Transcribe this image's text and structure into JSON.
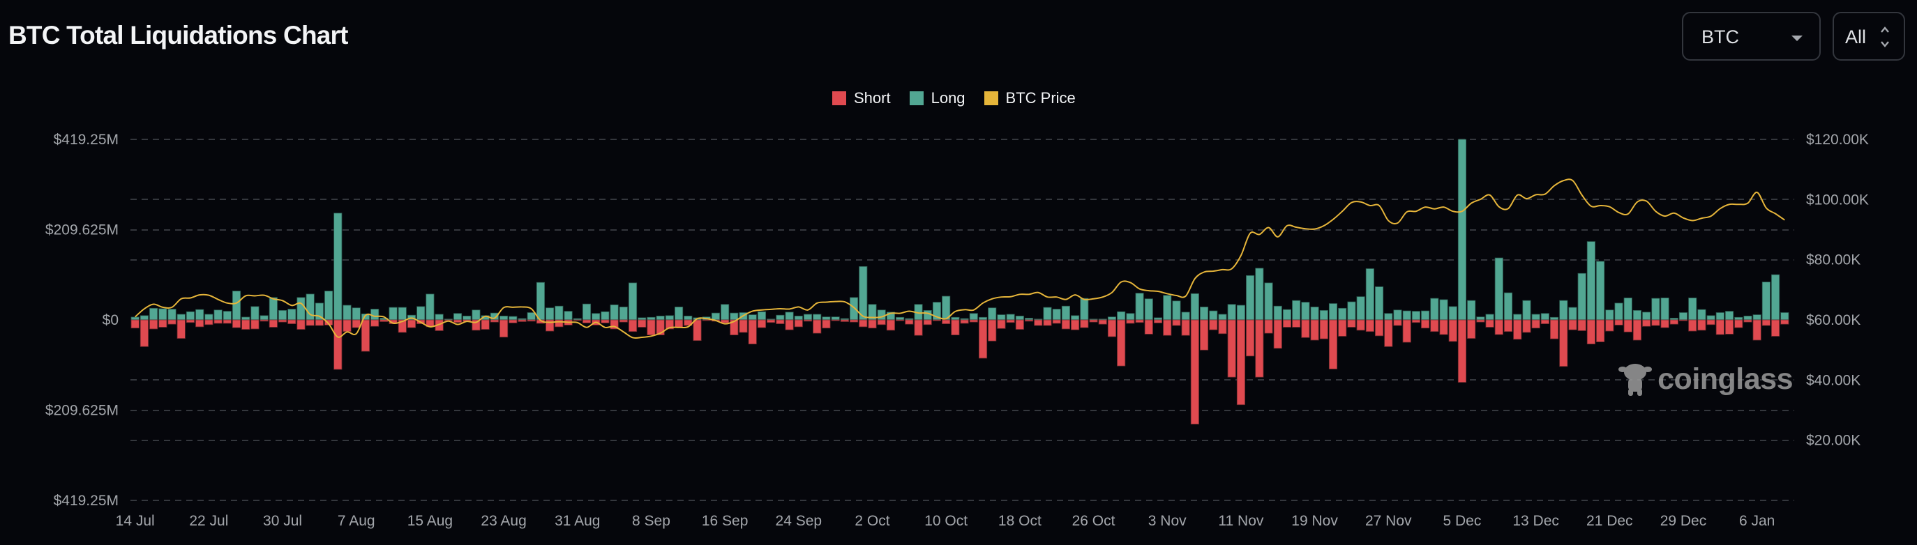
{
  "header": {
    "title": "BTC Total Liquidations Chart",
    "coin_select": {
      "value": "BTC",
      "icon": "caret-down-icon"
    },
    "range_select": {
      "value": "All",
      "icon": "up-down-chevron-icon"
    }
  },
  "watermark": {
    "text": "coinglass",
    "icon": "coinglass-mascot-icon"
  },
  "colors": {
    "short": "#e04a50",
    "long": "#52a793",
    "price": "#e6b53a",
    "background": "#05060b",
    "grid": "#34373d"
  },
  "chart_data": {
    "type": "bar",
    "stacked_diverging": true,
    "legend": {
      "position": "top-center",
      "items": [
        "Short",
        "Long",
        "BTC Price"
      ]
    },
    "grid": true,
    "left_axis": {
      "ticks": [
        "$419.25M",
        "$209.625M",
        "$0",
        "$209.625M",
        "$419.25M"
      ],
      "range_millions": [
        -419.25,
        419.25
      ]
    },
    "right_axis": {
      "ticks": [
        "$120.00K",
        "$100.00K",
        "$80.00K",
        "$60.00K",
        "$40.00K",
        "$20.00K"
      ],
      "range_thousands": [
        0,
        120
      ]
    },
    "x_ticks": [
      "14 Jul",
      "22 Jul",
      "30 Jul",
      "7 Aug",
      "15 Aug",
      "23 Aug",
      "31 Aug",
      "8 Sep",
      "16 Sep",
      "24 Sep",
      "2 Oct",
      "10 Oct",
      "18 Oct",
      "26 Oct",
      "3 Nov",
      "11 Nov",
      "19 Nov",
      "27 Nov",
      "5 Dec",
      "13 Dec",
      "21 Dec",
      "29 Dec",
      "6 Jan"
    ],
    "categories": [
      "14 Jul",
      "15 Jul",
      "16 Jul",
      "17 Jul",
      "18 Jul",
      "19 Jul",
      "20 Jul",
      "21 Jul",
      "22 Jul",
      "23 Jul",
      "24 Jul",
      "25 Jul",
      "26 Jul",
      "27 Jul",
      "28 Jul",
      "29 Jul",
      "30 Jul",
      "31 Jul",
      "1 Aug",
      "2 Aug",
      "3 Aug",
      "4 Aug",
      "5 Aug",
      "6 Aug",
      "7 Aug",
      "8 Aug",
      "9 Aug",
      "10 Aug",
      "11 Aug",
      "12 Aug",
      "13 Aug",
      "14 Aug",
      "15 Aug",
      "16 Aug",
      "17 Aug",
      "18 Aug",
      "19 Aug",
      "20 Aug",
      "21 Aug",
      "22 Aug",
      "23 Aug",
      "24 Aug",
      "25 Aug",
      "26 Aug",
      "27 Aug",
      "28 Aug",
      "29 Aug",
      "30 Aug",
      "31 Aug",
      "1 Sep",
      "2 Sep",
      "3 Sep",
      "4 Sep",
      "5 Sep",
      "6 Sep",
      "7 Sep",
      "8 Sep",
      "9 Sep",
      "10 Sep",
      "11 Sep",
      "12 Sep",
      "13 Sep",
      "14 Sep",
      "15 Sep",
      "16 Sep",
      "17 Sep",
      "18 Sep",
      "19 Sep",
      "20 Sep",
      "21 Sep",
      "22 Sep",
      "23 Sep",
      "24 Sep",
      "25 Sep",
      "26 Sep",
      "27 Sep",
      "28 Sep",
      "29 Sep",
      "30 Sep",
      "1 Oct",
      "2 Oct",
      "3 Oct",
      "4 Oct",
      "5 Oct",
      "6 Oct",
      "7 Oct",
      "8 Oct",
      "9 Oct",
      "10 Oct",
      "11 Oct",
      "12 Oct",
      "13 Oct",
      "14 Oct",
      "15 Oct",
      "16 Oct",
      "17 Oct",
      "18 Oct",
      "19 Oct",
      "20 Oct",
      "21 Oct",
      "22 Oct",
      "23 Oct",
      "24 Oct",
      "25 Oct",
      "26 Oct",
      "27 Oct",
      "28 Oct",
      "29 Oct",
      "30 Oct",
      "31 Oct",
      "1 Nov",
      "2 Nov",
      "3 Nov",
      "4 Nov",
      "5 Nov",
      "6 Nov",
      "7 Nov",
      "8 Nov",
      "9 Nov",
      "10 Nov",
      "11 Nov",
      "12 Nov",
      "13 Nov",
      "14 Nov",
      "15 Nov",
      "16 Nov",
      "17 Nov",
      "18 Nov",
      "19 Nov",
      "20 Nov",
      "21 Nov",
      "22 Nov",
      "23 Nov",
      "24 Nov",
      "25 Nov",
      "26 Nov",
      "27 Nov",
      "28 Nov",
      "29 Nov",
      "30 Nov",
      "1 Dec",
      "2 Dec",
      "3 Dec",
      "4 Dec",
      "5 Dec",
      "6 Dec",
      "7 Dec",
      "8 Dec",
      "9 Dec",
      "10 Dec",
      "11 Dec",
      "12 Dec",
      "13 Dec",
      "14 Dec",
      "15 Dec",
      "16 Dec",
      "17 Dec",
      "18 Dec",
      "19 Dec",
      "20 Dec",
      "21 Dec",
      "22 Dec",
      "23 Dec",
      "24 Dec",
      "25 Dec",
      "26 Dec",
      "27 Dec",
      "28 Dec",
      "29 Dec",
      "30 Dec",
      "31 Dec",
      "1 Jan",
      "2 Jan",
      "3 Jan",
      "4 Jan",
      "5 Jan",
      "6 Jan",
      "7 Jan",
      "8 Jan",
      "9 Jan"
    ],
    "series": [
      {
        "name": "Long",
        "unit": "M USD",
        "values": [
          6.5,
          10,
          27,
          26,
          25,
          13,
          19,
          24,
          13,
          23,
          20,
          67,
          6.5,
          31,
          10,
          52,
          22,
          25,
          52,
          60,
          39,
          67,
          248,
          34,
          28,
          14,
          25,
          4,
          29,
          29,
          11,
          31,
          60,
          13,
          2,
          15,
          9,
          23,
          10,
          16,
          9,
          8,
          3,
          17,
          87,
          28,
          32,
          20,
          3,
          37,
          15,
          19,
          35,
          30,
          86,
          5,
          6,
          9,
          10,
          30,
          9,
          5,
          7,
          16,
          36,
          16,
          17,
          12,
          19,
          2,
          11,
          18,
          9,
          13,
          13,
          7,
          7,
          3,
          52,
          124,
          36,
          23,
          18,
          6,
          3,
          36,
          22,
          41,
          55,
          6,
          3,
          15,
          6,
          28,
          12,
          13,
          9,
          4,
          2,
          29,
          25,
          32,
          10,
          50,
          2,
          2,
          7,
          19,
          15,
          62,
          49,
          5,
          57,
          44,
          18,
          61,
          30,
          21,
          13,
          36,
          34,
          103,
          120,
          86,
          32,
          24,
          45,
          41,
          30,
          22,
          38,
          27,
          42,
          54,
          119,
          77,
          15,
          23,
          21,
          20,
          21,
          50,
          47,
          31,
          419.25,
          45,
          7,
          13,
          144,
          63,
          13,
          45,
          13,
          15,
          6,
          45,
          29,
          108,
          182,
          136,
          23,
          39,
          51,
          22,
          18,
          50,
          51,
          4,
          17,
          51,
          24,
          10,
          17,
          20,
          6,
          9,
          12,
          88,
          105,
          17
        ]
      },
      {
        "name": "Short",
        "unit": "M USD",
        "values": [
          19,
          62,
          21,
          17,
          10,
          43,
          6,
          16,
          11,
          8,
          8,
          18,
          22,
          21,
          3,
          17,
          5,
          9,
          22,
          13,
          13,
          12,
          115,
          27,
          18,
          73,
          15,
          4,
          9,
          29,
          18,
          9,
          16,
          25,
          2,
          6,
          4,
          24,
          22,
          5,
          40,
          7,
          4,
          3,
          8,
          26,
          16,
          12,
          1,
          7,
          12,
          7,
          21,
          5,
          27,
          17,
          35,
          35,
          21,
          17,
          13,
          48,
          1,
          3,
          7,
          35,
          29,
          56,
          18,
          6,
          9,
          23,
          16,
          3,
          31,
          19,
          2,
          4,
          5,
          16,
          19,
          11,
          24,
          2,
          10,
          36,
          11,
          2,
          9,
          35,
          8,
          5,
          89,
          49,
          20,
          6,
          22,
          3,
          13,
          13,
          8,
          21,
          23,
          18,
          5,
          10,
          39,
          107,
          8,
          6,
          33,
          7,
          36,
          13,
          36,
          242,
          70,
          23,
          32,
          133,
          197,
          84,
          133,
          31,
          66,
          17,
          17,
          41,
          47,
          44,
          114,
          38,
          17,
          24,
          27,
          37,
          62,
          13,
          52,
          6,
          19,
          27,
          34,
          50,
          145,
          43,
          5,
          17,
          34,
          27,
          45,
          29,
          19,
          9,
          44,
          108,
          23,
          25,
          56,
          51,
          26,
          12,
          28,
          47,
          15,
          13,
          18,
          10,
          2,
          26,
          24,
          11,
          34,
          33,
          18,
          5,
          47,
          13,
          38,
          10
        ]
      },
      {
        "name": "BTC Price",
        "unit": "K USD",
        "values": [
          61.0,
          63.7,
          65.2,
          64.2,
          64.2,
          67.0,
          67.3,
          68.3,
          68.2,
          66.8,
          65.6,
          65.6,
          68.0,
          68.0,
          68.2,
          67.0,
          66.4,
          64.8,
          65.5,
          61.8,
          61.2,
          58.7,
          54.3,
          56.0,
          55.4,
          61.5,
          61.2,
          61.0,
          58.9,
          59.5,
          60.6,
          59.2,
          57.7,
          58.5,
          59.6,
          58.5,
          59.5,
          59.2,
          61.2,
          60.6,
          64.1,
          64.2,
          64.3,
          63.7,
          59.8,
          59.2,
          59.4,
          59.2,
          59.1,
          57.5,
          59.2,
          57.5,
          57.8,
          56.0,
          54.1,
          54.2,
          54.6,
          55.6,
          57.4,
          57.5,
          57.7,
          60.4,
          60.4,
          59.8,
          58.7,
          59.5,
          61.4,
          62.9,
          63.3,
          63.5,
          63.7,
          63.6,
          64.3,
          63.3,
          65.6,
          65.9,
          66.1,
          66.0,
          64.1,
          61.2,
          60.8,
          61.0,
          62.2,
          62.2,
          62.9,
          62.3,
          62.2,
          61.0,
          60.4,
          62.8,
          63.4,
          63.3,
          65.6,
          67.0,
          67.6,
          67.7,
          68.5,
          68.5,
          69.1,
          67.6,
          67.6,
          66.8,
          68.3,
          66.8,
          67.0,
          67.6,
          69.1,
          72.6,
          72.4,
          70.3,
          69.7,
          69.5,
          68.7,
          68.1,
          67.9,
          73.7,
          75.9,
          76.2,
          76.7,
          77.0,
          81.4,
          88.8,
          88.4,
          90.7,
          87.6,
          91.3,
          90.8,
          90.3,
          90.2,
          91.3,
          93.4,
          96.1,
          99.0,
          99.2,
          98.0,
          98.0,
          93.0,
          92.2,
          95.9,
          96.1,
          97.5,
          96.9,
          97.5,
          96.1,
          96.1,
          98.8,
          100.1,
          101.5,
          97.6,
          97.0,
          101.5,
          100.3,
          101.6,
          101.8,
          104.6,
          106.3,
          106.3,
          101.5,
          97.8,
          98.0,
          97.6,
          95.7,
          95.2,
          99.2,
          99.5,
          96.1,
          94.5,
          95.5,
          93.9,
          93.0,
          93.8,
          94.5,
          97.0,
          98.4,
          98.4,
          98.8,
          102.4,
          97.2,
          95.3,
          93.2
        ]
      }
    ]
  }
}
